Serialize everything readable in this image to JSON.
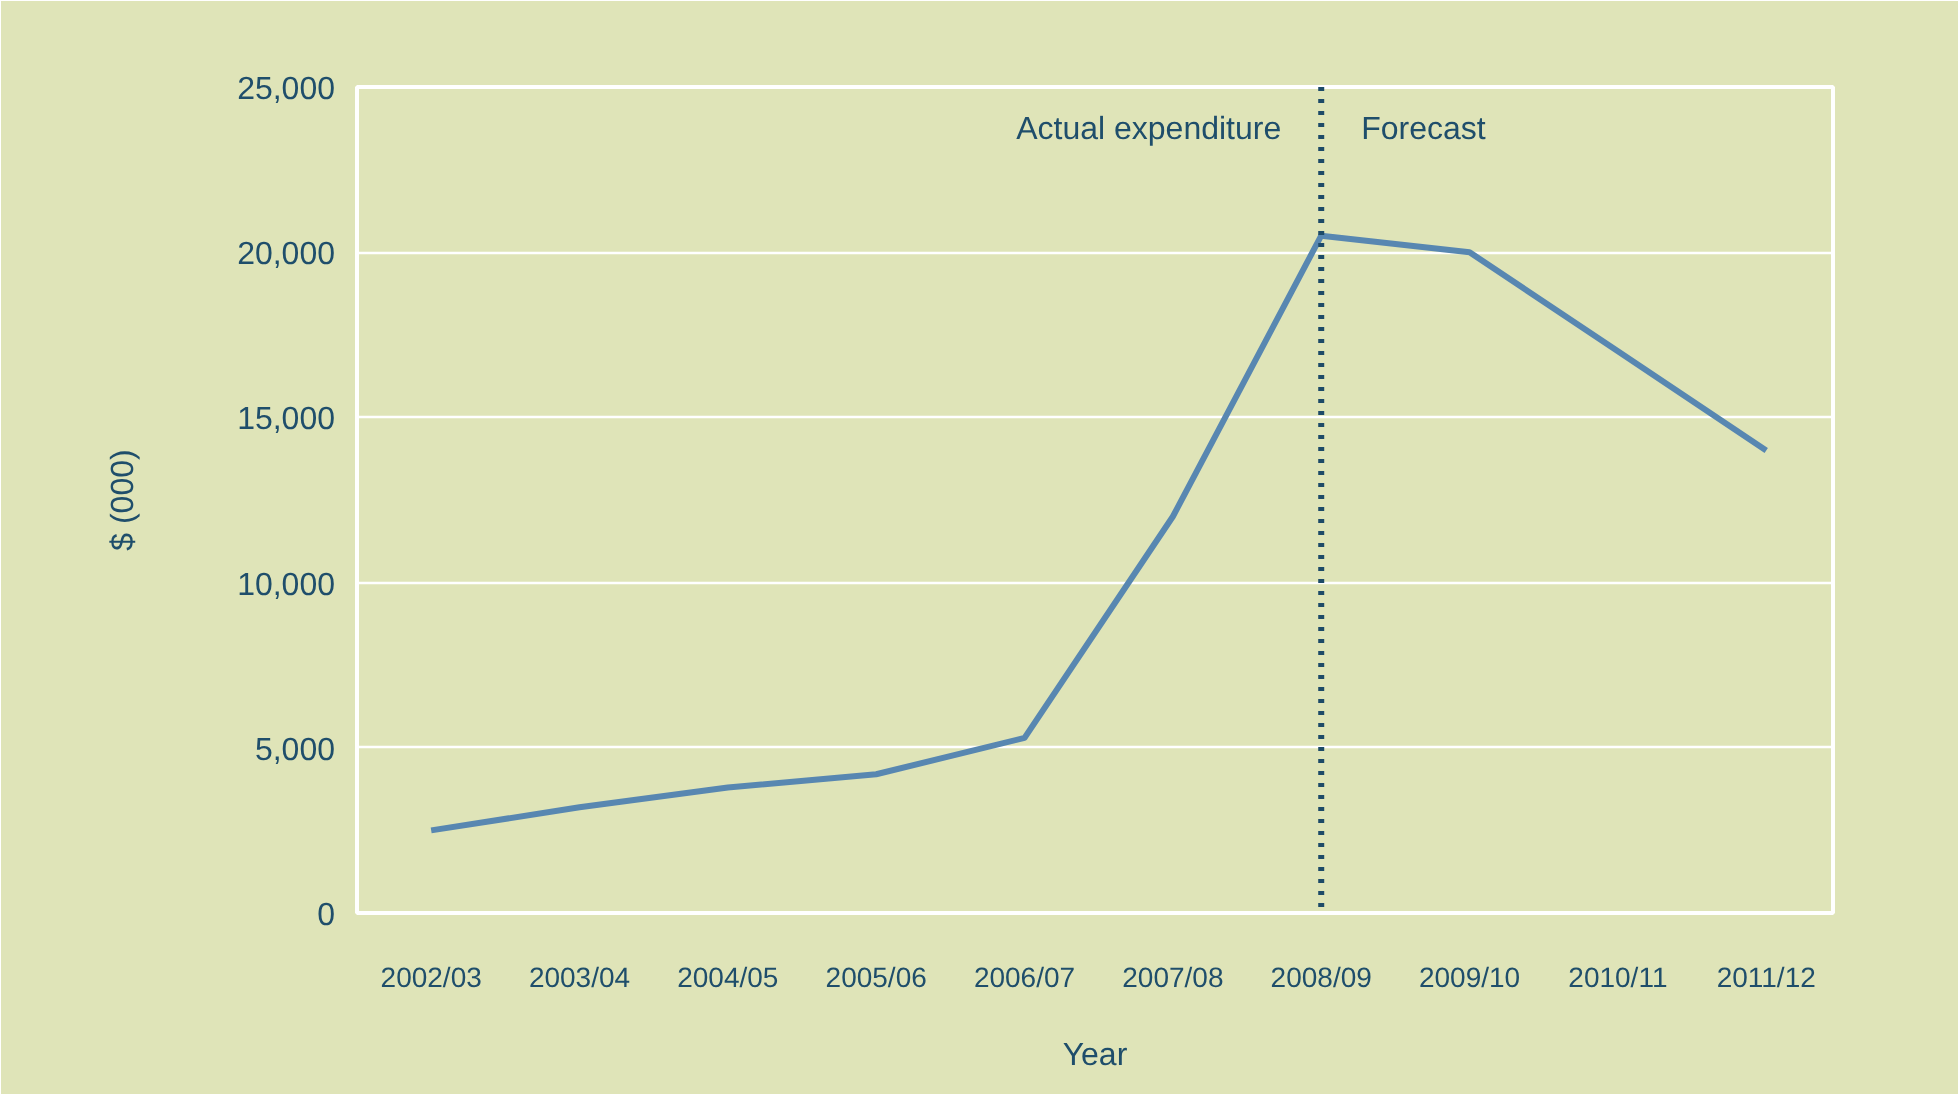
{
  "chart_data": {
    "type": "line",
    "xlabel": "Year",
    "ylabel": "$ (000)",
    "categories": [
      "2002/03",
      "2003/04",
      "2004/05",
      "2005/06",
      "2006/07",
      "2007/08",
      "2008/09",
      "2009/10",
      "2010/11",
      "2011/12"
    ],
    "series": [
      {
        "color": "#5887b1",
        "values": [
          2500,
          3200,
          3800,
          4200,
          5300,
          12000,
          20500,
          20000,
          17000,
          14000
        ]
      }
    ],
    "ylim": [
      0,
      25000
    ],
    "yticks": [
      0,
      {
        "value": 5000,
        "label": "5,000"
      },
      {
        "value": 10000,
        "label": "10,000"
      },
      {
        "value": 15000,
        "label": "15,000"
      },
      {
        "value": 20000,
        "label": "20,000"
      },
      {
        "value": 25000,
        "label": "25,000"
      }
    ],
    "ref_lines": [
      {
        "axis": "x",
        "value": "2008/09",
        "color": "#1d4a68",
        "line_style": "dotted"
      }
    ],
    "annotations": [
      {
        "text": "Actual expenditure",
        "x": "2008/09",
        "y": 23700
      },
      {
        "text": "Forecast",
        "x": "2008/09",
        "y": 23700
      }
    ],
    "grid": "y",
    "marker": "none",
    "line_style": "solid"
  }
}
